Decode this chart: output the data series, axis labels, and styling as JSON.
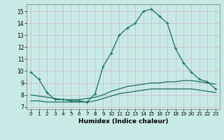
{
  "xlabel": "Humidex (Indice chaleur)",
  "bg_color": "#c8eae6",
  "grid_color": "#c8b8c8",
  "line_color": "#1a6e60",
  "xlim": [
    -0.5,
    23.5
  ],
  "ylim": [
    6.8,
    15.6
  ],
  "xticks": [
    0,
    1,
    2,
    3,
    4,
    5,
    6,
    7,
    8,
    9,
    10,
    11,
    12,
    13,
    14,
    15,
    16,
    17,
    18,
    19,
    20,
    21,
    22,
    23
  ],
  "yticks": [
    7,
    8,
    9,
    10,
    11,
    12,
    13,
    14,
    15
  ],
  "line1_x": [
    0,
    1,
    2,
    3,
    4,
    5,
    6,
    7,
    8,
    9,
    10,
    11,
    12,
    13,
    14,
    15,
    16,
    17,
    18,
    19,
    20,
    21,
    22,
    23
  ],
  "line1_y": [
    9.9,
    9.3,
    8.2,
    7.6,
    7.6,
    7.5,
    7.5,
    7.4,
    8.1,
    10.4,
    11.5,
    13.0,
    13.6,
    14.0,
    15.0,
    15.2,
    14.6,
    14.0,
    11.9,
    10.7,
    9.9,
    9.3,
    9.1,
    8.5
  ],
  "line2_x": [
    0,
    1,
    2,
    3,
    4,
    5,
    6,
    7,
    8,
    9,
    10,
    11,
    12,
    13,
    14,
    15,
    16,
    17,
    18,
    19,
    20,
    21,
    22,
    23
  ],
  "line2_y": [
    8.0,
    7.9,
    7.8,
    7.7,
    7.6,
    7.6,
    7.6,
    7.7,
    7.8,
    8.0,
    8.3,
    8.5,
    8.7,
    8.8,
    8.9,
    9.0,
    9.0,
    9.1,
    9.1,
    9.2,
    9.2,
    9.1,
    9.0,
    8.9
  ],
  "line3_x": [
    0,
    1,
    2,
    3,
    4,
    5,
    6,
    7,
    8,
    9,
    10,
    11,
    12,
    13,
    14,
    15,
    16,
    17,
    18,
    19,
    20,
    21,
    22,
    23
  ],
  "line3_y": [
    7.5,
    7.5,
    7.4,
    7.4,
    7.4,
    7.4,
    7.4,
    7.4,
    7.5,
    7.7,
    7.9,
    8.1,
    8.2,
    8.3,
    8.4,
    8.5,
    8.5,
    8.5,
    8.5,
    8.5,
    8.5,
    8.4,
    8.3,
    8.2
  ]
}
